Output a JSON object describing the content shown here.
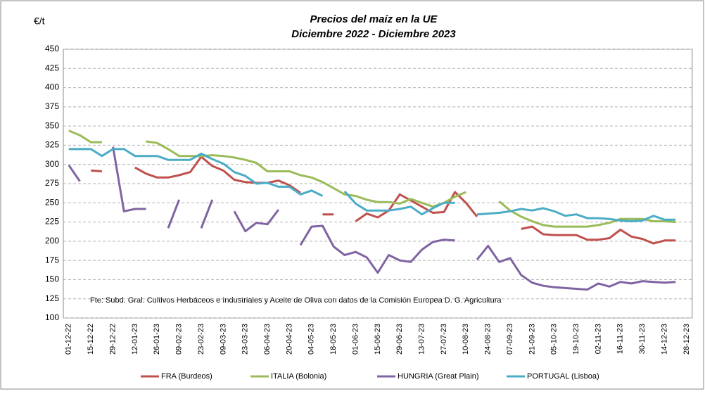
{
  "chart_data": {
    "type": "line",
    "title": "Precios del maíz en la UE",
    "subtitle": "Diciembre 2022 - Diciembre 2023",
    "y_label": "€/t",
    "note": "Fte: Subd. Gral. Cultivos Herbáceos e Industriales y Aceite de Oliva con datos de la Comisión Europea D. G. Agricultura",
    "categories": [
      "01-12-22",
      null,
      "15-12-22",
      null,
      "29-12-22",
      null,
      "12-01-23",
      null,
      "26-01-23",
      null,
      "09-02-23",
      null,
      "23-02-23",
      null,
      "09-03-23",
      null,
      "23-03-23",
      null,
      "06-04-23",
      null,
      "20-04-23",
      null,
      "04-05-23",
      null,
      "18-05-23",
      null,
      "01-06-23",
      null,
      "15-06-23",
      null,
      "29-06-23",
      null,
      "13-07-23",
      null,
      "27-07-23",
      null,
      "10-08-23",
      null,
      "24-08-23",
      null,
      "07-09-23",
      null,
      "21-09-23",
      null,
      "05-10-23",
      null,
      "19-10-23",
      null,
      "02-11-23",
      null,
      "16-11-23",
      null,
      "30-11-23",
      null,
      "14-12-23",
      null,
      "28-12-23"
    ],
    "series": [
      {
        "name": "FRA (Burdeos)",
        "color": "#c0504d",
        "values": [
          null,
          null,
          292,
          291,
          null,
          null,
          296,
          288,
          283,
          283,
          286,
          290,
          310,
          298,
          292,
          280,
          277,
          276,
          276,
          279,
          273,
          263,
          null,
          235,
          235,
          null,
          226,
          236,
          231,
          240,
          261,
          253,
          245,
          237,
          238,
          264,
          250,
          232,
          null,
          null,
          null,
          216,
          219,
          209,
          208,
          208,
          208,
          202,
          202,
          204,
          215,
          206,
          203,
          197,
          201,
          201,
          null
        ]
      },
      {
        "name": "ITALIA (Bolonia)",
        "color": "#9bbb59",
        "values": [
          344,
          338,
          329,
          329,
          null,
          null,
          null,
          330,
          328,
          320,
          311,
          311,
          311,
          312,
          311,
          309,
          306,
          302,
          291,
          291,
          291,
          286,
          283,
          277,
          269,
          261,
          259,
          254,
          251,
          251,
          249,
          255,
          250,
          245,
          250,
          258,
          264,
          null,
          null,
          252,
          240,
          232,
          226,
          221,
          219,
          219,
          219,
          219,
          221,
          224,
          229,
          229,
          229,
          226,
          226,
          225,
          null
        ]
      },
      {
        "name": "HUNGRIA (Great Plain)",
        "color": "#8064a2",
        "values": [
          299,
          278,
          null,
          null,
          323,
          239,
          242,
          242,
          null,
          217,
          254,
          null,
          217,
          254,
          null,
          239,
          213,
          224,
          222,
          241,
          null,
          195,
          219,
          220,
          193,
          182,
          186,
          179,
          159,
          182,
          175,
          173,
          189,
          199,
          202,
          201,
          null,
          176,
          194,
          173,
          178,
          156,
          146,
          142,
          140,
          139,
          138,
          137,
          145,
          141,
          147,
          145,
          148,
          147,
          146,
          147,
          null
        ]
      },
      {
        "name": "PORTUGAL (Lisboa)",
        "color": "#4bacc6",
        "values": [
          320,
          320,
          320,
          311,
          320,
          320,
          311,
          311,
          311,
          306,
          306,
          306,
          314,
          307,
          301,
          290,
          285,
          275,
          276,
          271,
          271,
          261,
          266,
          259,
          null,
          265,
          249,
          240,
          240,
          240,
          242,
          245,
          235,
          243,
          250,
          250,
          null,
          235,
          236,
          237,
          239,
          242,
          240,
          243,
          239,
          233,
          235,
          230,
          230,
          229,
          227,
          226,
          227,
          233,
          228,
          228,
          null
        ]
      }
    ],
    "ylim": [
      100,
      450
    ],
    "yticks": [
      100,
      125,
      150,
      175,
      200,
      225,
      250,
      275,
      300,
      325,
      350,
      375,
      400,
      425,
      450
    ],
    "grid": true
  }
}
